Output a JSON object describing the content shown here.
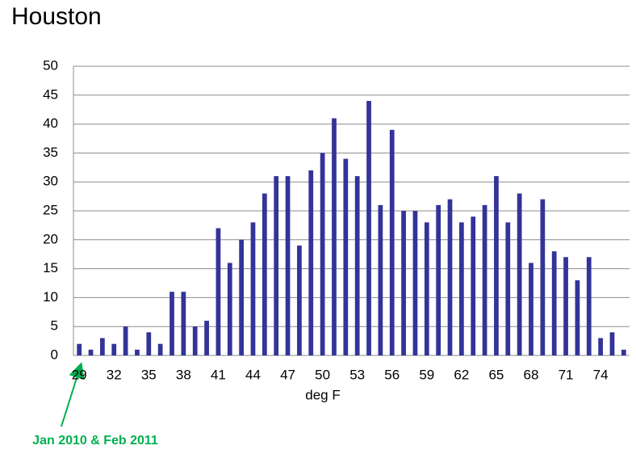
{
  "chart_data": {
    "type": "bar",
    "title": "Houston",
    "x_label": "deg F",
    "annotation": "Jan 2010 & Feb 2011",
    "categories": [
      "29",
      null,
      null,
      "32",
      null,
      null,
      "35",
      null,
      null,
      "38",
      null,
      null,
      "41",
      null,
      null,
      "44",
      null,
      null,
      "47",
      null,
      null,
      "50",
      null,
      null,
      "53",
      null,
      null,
      "56",
      null,
      null,
      "59",
      null,
      null,
      "62",
      null,
      null,
      "65",
      null,
      null,
      "68",
      null,
      null,
      "71",
      null,
      null,
      "74",
      null,
      null
    ],
    "values": [
      2,
      1,
      3,
      2,
      5,
      1,
      4,
      2,
      11,
      11,
      5,
      6,
      22,
      16,
      20,
      23,
      28,
      31,
      31,
      19,
      32,
      35,
      41,
      34,
      31,
      44,
      26,
      39,
      25,
      25,
      23,
      26,
      27,
      23,
      24,
      26,
      31,
      23,
      28,
      16,
      27,
      18,
      17,
      13,
      17,
      3,
      4,
      1
    ],
    "color": "#333399",
    "ylim": [
      0,
      50
    ],
    "yticks": [
      0,
      5,
      10,
      15,
      20,
      25,
      30,
      35,
      40,
      45,
      50
    ],
    "grid": true
  }
}
